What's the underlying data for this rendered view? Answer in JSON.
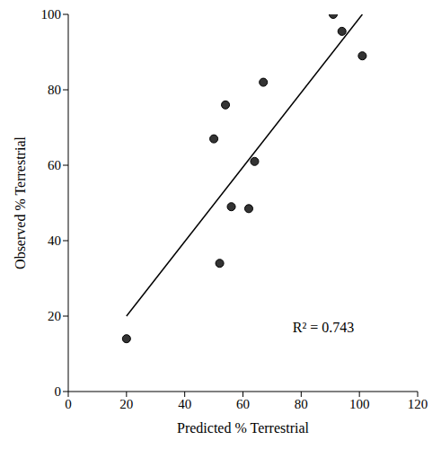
{
  "chart_data": {
    "type": "scatter",
    "x_label": "Predicted % Terrestrial",
    "y_label": "Observed % Terrestrial",
    "x": [
      20,
      50,
      52,
      54,
      56,
      62,
      64,
      67,
      91,
      94,
      101
    ],
    "values": [
      14,
      67,
      34,
      76,
      49,
      48.5,
      61,
      82,
      100,
      95.5,
      89
    ],
    "color": "#333333",
    "marker": "circle",
    "trend_line": {
      "x": [
        20,
        101
      ],
      "y": [
        20,
        100
      ]
    },
    "annotation": "R² = 0.743",
    "xlim": [
      0,
      120
    ],
    "xticks": [
      0,
      20,
      40,
      60,
      80,
      100,
      120
    ],
    "ylim": [
      0,
      100
    ],
    "yticks": [
      0,
      20,
      40,
      60,
      80,
      100
    ],
    "grid": false
  }
}
